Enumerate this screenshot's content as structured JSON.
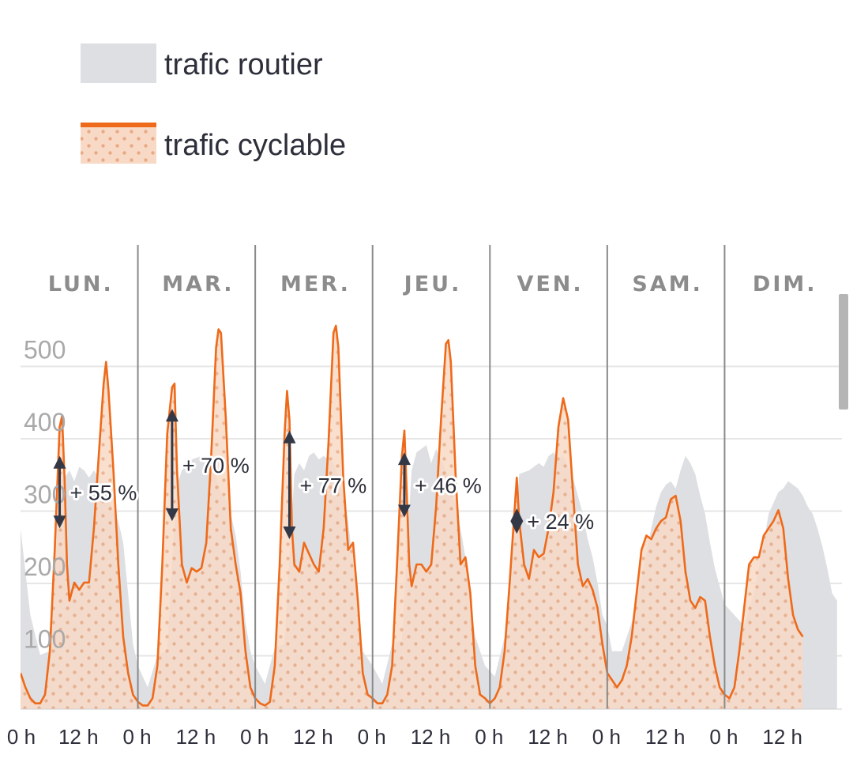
{
  "legend": {
    "road_label": "trafic routier",
    "bike_label": "trafic cyclable"
  },
  "colors": {
    "road_fill": "#dedfe2",
    "bike_line": "#ee6a1a",
    "bike_fill": "#f7d9c6",
    "dot": "#e9a983",
    "separator": "#8a8a8a",
    "grid": "#e6e6e6",
    "arrow": "#333846"
  },
  "chart_data": {
    "type": "area",
    "title": "",
    "xlabel": "",
    "ylabel": "",
    "ylim": [
      0,
      530
    ],
    "yticks": [
      100,
      200,
      300,
      400,
      500
    ],
    "days": [
      "LUN.",
      "MAR.",
      "MER.",
      "JEU.",
      "VEN.",
      "SAM.",
      "DIM."
    ],
    "x_tick_labels": [
      "0 h",
      "12 h",
      "0 h",
      "12 h",
      "0 h",
      "12 h",
      "0 h",
      "12 h",
      "0 h",
      "12 h",
      "0 h",
      "12 h",
      "0 h",
      "12 h"
    ],
    "x_unit": "hour of week",
    "series": [
      {
        "name": "trafic routier",
        "points": [
          [
            0,
            250
          ],
          [
            2,
            130
          ],
          [
            4,
            75
          ],
          [
            6,
            80
          ],
          [
            7,
            180
          ],
          [
            8,
            315
          ],
          [
            9,
            320
          ],
          [
            10,
            330
          ],
          [
            11,
            315
          ],
          [
            12,
            335
          ],
          [
            13,
            330
          ],
          [
            14,
            320
          ],
          [
            15,
            330
          ],
          [
            16,
            320
          ],
          [
            17,
            310
          ],
          [
            18,
            290
          ],
          [
            19,
            275
          ],
          [
            20,
            260
          ],
          [
            21,
            230
          ],
          [
            22,
            160
          ],
          [
            23,
            90
          ],
          [
            24,
            60
          ],
          [
            26,
            30
          ],
          [
            28,
            75
          ],
          [
            30,
            80
          ],
          [
            31,
            200
          ],
          [
            32,
            310
          ],
          [
            33,
            330
          ],
          [
            35,
            345
          ],
          [
            37,
            350
          ],
          [
            39,
            345
          ],
          [
            40,
            320
          ],
          [
            41,
            300
          ],
          [
            42,
            290
          ],
          [
            43,
            270
          ],
          [
            44,
            240
          ],
          [
            45,
            190
          ],
          [
            46,
            120
          ],
          [
            47,
            80
          ],
          [
            48,
            60
          ],
          [
            50,
            35
          ],
          [
            52,
            85
          ],
          [
            54,
            90
          ],
          [
            55,
            210
          ],
          [
            56,
            325
          ],
          [
            57,
            340
          ],
          [
            58,
            330
          ],
          [
            59,
            350
          ],
          [
            60,
            355
          ],
          [
            61,
            345
          ],
          [
            62,
            350
          ],
          [
            63,
            345
          ],
          [
            64,
            340
          ],
          [
            65,
            320
          ],
          [
            66,
            295
          ],
          [
            67,
            260
          ],
          [
            68,
            200
          ],
          [
            69,
            140
          ],
          [
            70,
            80
          ],
          [
            72,
            60
          ],
          [
            74,
            35
          ],
          [
            76,
            90
          ],
          [
            78,
            95
          ],
          [
            79,
            220
          ],
          [
            80,
            330
          ],
          [
            81,
            355
          ],
          [
            83,
            365
          ],
          [
            84,
            340
          ],
          [
            85,
            360
          ],
          [
            86,
            345
          ],
          [
            87,
            330
          ],
          [
            88,
            310
          ],
          [
            89,
            280
          ],
          [
            90,
            250
          ],
          [
            91,
            210
          ],
          [
            92,
            150
          ],
          [
            93,
            100
          ],
          [
            95,
            60
          ],
          [
            97,
            45
          ],
          [
            99,
            100
          ],
          [
            100,
            140
          ],
          [
            101,
            240
          ],
          [
            102,
            325
          ],
          [
            104,
            330
          ],
          [
            106,
            340
          ],
          [
            107,
            335
          ],
          [
            108,
            350
          ],
          [
            109,
            355
          ],
          [
            110,
            345
          ],
          [
            111,
            350
          ],
          [
            112,
            335
          ],
          [
            113,
            320
          ],
          [
            114,
            295
          ],
          [
            115,
            270
          ],
          [
            116,
            235
          ],
          [
            117,
            210
          ],
          [
            118,
            175
          ],
          [
            119,
            130
          ],
          [
            120,
            115
          ],
          [
            121,
            80
          ],
          [
            123,
            80
          ],
          [
            125,
            120
          ],
          [
            127,
            180
          ],
          [
            129,
            250
          ],
          [
            130,
            280
          ],
          [
            131,
            300
          ],
          [
            132,
            310
          ],
          [
            133,
            315
          ],
          [
            134,
            305
          ],
          [
            135,
            330
          ],
          [
            136,
            350
          ],
          [
            137,
            340
          ],
          [
            138,
            325
          ],
          [
            139,
            295
          ],
          [
            140,
            270
          ],
          [
            141,
            230
          ],
          [
            142,
            195
          ],
          [
            143,
            170
          ],
          [
            144,
            145
          ],
          [
            146,
            130
          ],
          [
            148,
            115
          ],
          [
            150,
            160
          ],
          [
            152,
            230
          ],
          [
            153,
            270
          ],
          [
            154,
            285
          ],
          [
            155,
            300
          ],
          [
            156,
            305
          ],
          [
            157,
            315
          ],
          [
            158,
            310
          ],
          [
            159,
            305
          ],
          [
            160,
            295
          ],
          [
            161,
            280
          ],
          [
            162,
            270
          ],
          [
            163,
            250
          ],
          [
            164,
            225
          ],
          [
            165,
            195
          ],
          [
            166,
            160
          ],
          [
            167,
            150
          ]
        ]
      },
      {
        "name": "trafic cyclable",
        "points": [
          [
            0,
            50
          ],
          [
            1,
            30
          ],
          [
            2,
            15
          ],
          [
            3,
            8
          ],
          [
            4,
            8
          ],
          [
            5,
            20
          ],
          [
            6,
            80
          ],
          [
            7,
            220
          ],
          [
            8,
            390
          ],
          [
            8.5,
            405
          ],
          [
            9,
            320
          ],
          [
            9.5,
            200
          ],
          [
            10,
            150
          ],
          [
            11,
            175
          ],
          [
            12,
            165
          ],
          [
            13,
            175
          ],
          [
            14,
            175
          ],
          [
            15,
            250
          ],
          [
            16,
            350
          ],
          [
            17,
            450
          ],
          [
            17.5,
            480
          ],
          [
            18,
            440
          ],
          [
            19,
            330
          ],
          [
            20,
            200
          ],
          [
            21,
            100
          ],
          [
            22,
            50
          ],
          [
            23,
            20
          ],
          [
            24,
            10
          ],
          [
            25,
            5
          ],
          [
            26,
            5
          ],
          [
            27,
            15
          ],
          [
            28,
            60
          ],
          [
            29,
            200
          ],
          [
            30,
            380
          ],
          [
            31,
            445
          ],
          [
            31.5,
            450
          ],
          [
            32,
            330
          ],
          [
            33,
            200
          ],
          [
            34,
            175
          ],
          [
            35,
            195
          ],
          [
            36,
            190
          ],
          [
            37,
            195
          ],
          [
            38,
            230
          ],
          [
            39,
            350
          ],
          [
            40,
            500
          ],
          [
            40.5,
            525
          ],
          [
            41,
            520
          ],
          [
            42,
            400
          ],
          [
            43,
            250
          ],
          [
            44,
            200
          ],
          [
            45,
            160
          ],
          [
            46,
            80
          ],
          [
            47,
            30
          ],
          [
            48,
            15
          ],
          [
            49,
            8
          ],
          [
            50,
            5
          ],
          [
            51,
            10
          ],
          [
            52,
            60
          ],
          [
            53,
            200
          ],
          [
            54,
            380
          ],
          [
            54.5,
            440
          ],
          [
            55,
            400
          ],
          [
            55.5,
            250
          ],
          [
            56,
            200
          ],
          [
            57,
            190
          ],
          [
            58,
            230
          ],
          [
            59,
            215
          ],
          [
            60,
            200
          ],
          [
            61,
            190
          ],
          [
            62,
            250
          ],
          [
            63,
            370
          ],
          [
            64,
            520
          ],
          [
            64.5,
            530
          ],
          [
            65,
            500
          ],
          [
            66,
            320
          ],
          [
            67,
            220
          ],
          [
            68,
            230
          ],
          [
            69,
            150
          ],
          [
            70,
            50
          ],
          [
            71,
            20
          ],
          [
            72,
            15
          ],
          [
            73,
            8
          ],
          [
            74,
            8
          ],
          [
            75,
            20
          ],
          [
            76,
            60
          ],
          [
            77,
            200
          ],
          [
            78,
            350
          ],
          [
            78.5,
            385
          ],
          [
            79,
            300
          ],
          [
            79.5,
            200
          ],
          [
            80,
            170
          ],
          [
            81,
            200
          ],
          [
            82,
            200
          ],
          [
            83,
            190
          ],
          [
            84,
            200
          ],
          [
            85,
            280
          ],
          [
            86,
            400
          ],
          [
            87,
            505
          ],
          [
            87.5,
            510
          ],
          [
            88,
            480
          ],
          [
            89,
            320
          ],
          [
            90,
            200
          ],
          [
            91,
            210
          ],
          [
            92,
            160
          ],
          [
            93,
            60
          ],
          [
            94,
            20
          ],
          [
            95,
            15
          ],
          [
            96,
            8
          ],
          [
            97,
            15
          ],
          [
            98,
            30
          ],
          [
            99,
            80
          ],
          [
            100,
            170
          ],
          [
            101,
            270
          ],
          [
            101.5,
            320
          ],
          [
            102,
            260
          ],
          [
            103,
            200
          ],
          [
            104,
            180
          ],
          [
            105,
            220
          ],
          [
            106,
            210
          ],
          [
            107,
            215
          ],
          [
            108,
            250
          ],
          [
            109,
            300
          ],
          [
            110,
            390
          ],
          [
            111,
            430
          ],
          [
            112,
            400
          ],
          [
            113,
            300
          ],
          [
            114,
            200
          ],
          [
            115,
            170
          ],
          [
            116,
            180
          ],
          [
            117,
            165
          ],
          [
            118,
            140
          ],
          [
            119,
            90
          ],
          [
            120,
            50
          ],
          [
            121,
            40
          ],
          [
            122,
            30
          ],
          [
            123,
            40
          ],
          [
            124,
            60
          ],
          [
            125,
            100
          ],
          [
            126,
            160
          ],
          [
            127,
            220
          ],
          [
            128,
            240
          ],
          [
            129,
            235
          ],
          [
            130,
            250
          ],
          [
            131,
            260
          ],
          [
            132,
            265
          ],
          [
            133,
            290
          ],
          [
            134,
            295
          ],
          [
            135,
            260
          ],
          [
            136,
            190
          ],
          [
            137,
            150
          ],
          [
            138,
            140
          ],
          [
            139,
            155
          ],
          [
            140,
            150
          ],
          [
            141,
            100
          ],
          [
            142,
            60
          ],
          [
            143,
            30
          ],
          [
            144,
            20
          ],
          [
            145,
            15
          ],
          [
            146,
            30
          ],
          [
            147,
            80
          ],
          [
            148,
            140
          ],
          [
            149,
            200
          ],
          [
            150,
            210
          ],
          [
            151,
            210
          ],
          [
            152,
            240
          ],
          [
            153,
            250
          ],
          [
            154,
            260
          ],
          [
            155,
            275
          ],
          [
            156,
            250
          ],
          [
            157,
            180
          ],
          [
            158,
            130
          ],
          [
            159,
            110
          ],
          [
            160,
            100
          ]
        ]
      }
    ],
    "annotations": [
      {
        "label": "+ 55 %",
        "x": 8,
        "y_low": 250,
        "y_high": 350
      },
      {
        "label": "+ 70 %",
        "x": 31,
        "y_low": 260,
        "y_high": 415
      },
      {
        "label": "+ 77 %",
        "x": 55,
        "y_low": 235,
        "y_high": 385
      },
      {
        "label": "+ 46 %",
        "x": 78.5,
        "y_low": 265,
        "y_high": 355
      },
      {
        "label": "+ 24 %",
        "x": 101.5,
        "y_low": 250,
        "y_high": 270
      }
    ]
  }
}
